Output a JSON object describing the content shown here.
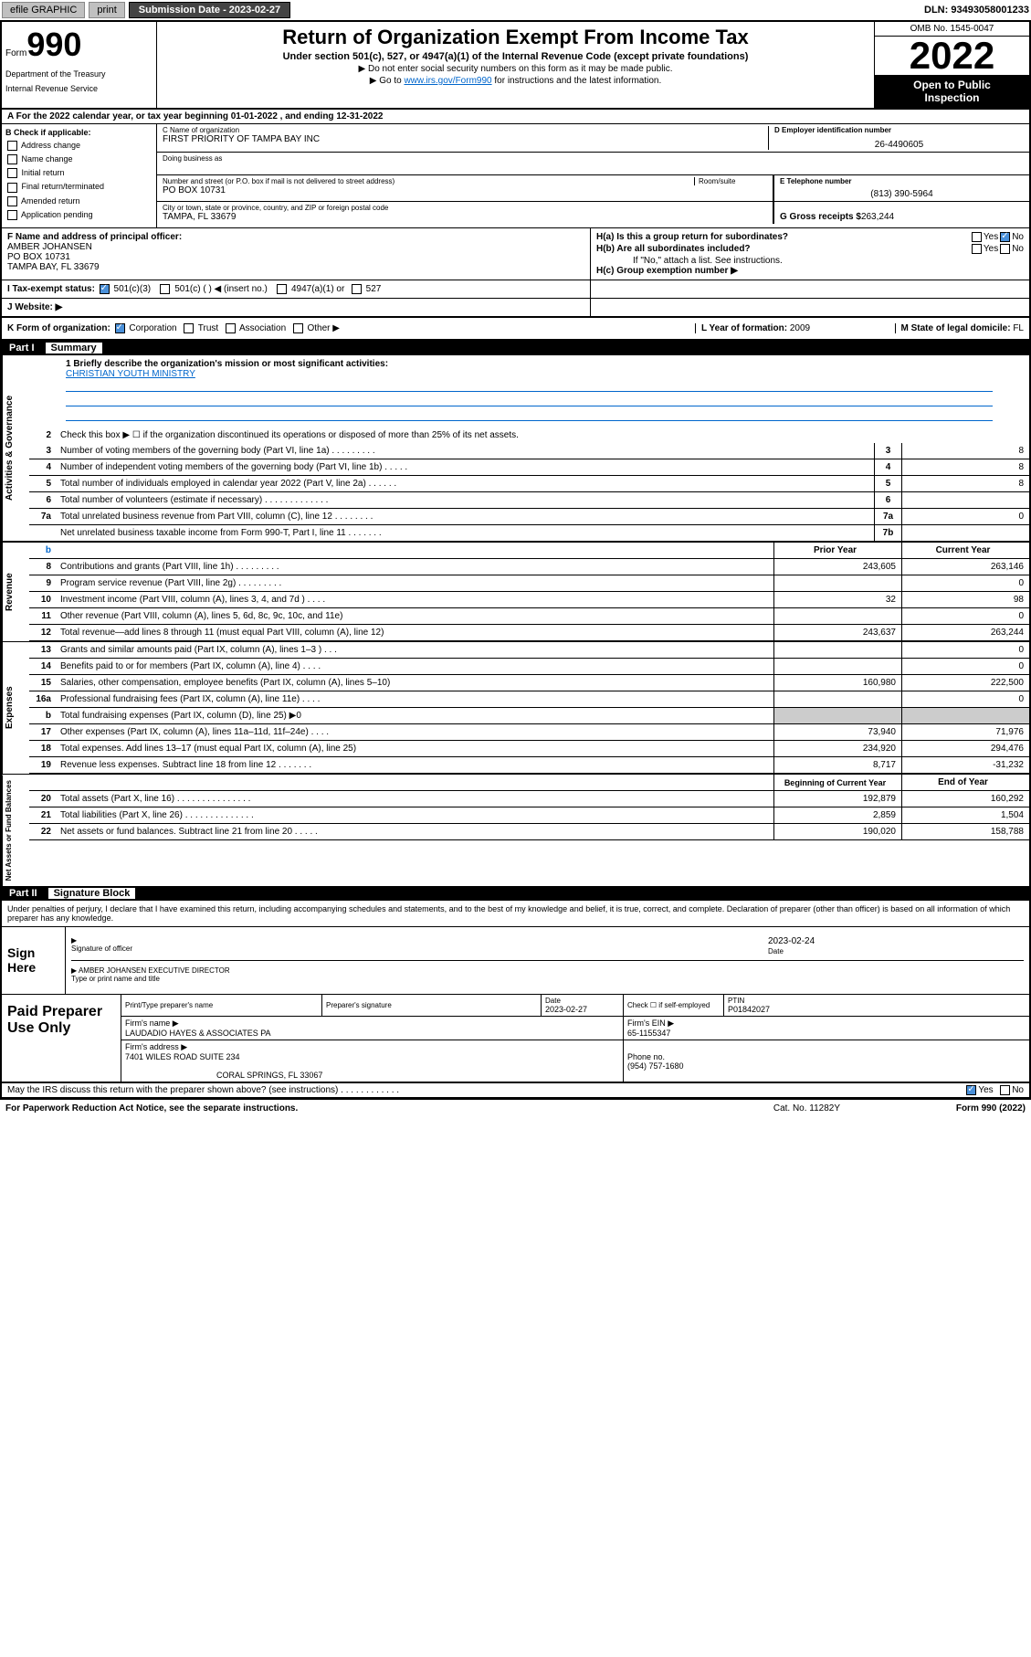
{
  "topbar": {
    "efile": "efile GRAPHIC",
    "print": "print",
    "subdate_lbl": "Submission Date - ",
    "subdate": "2023-02-27",
    "dln_lbl": "DLN: ",
    "dln": "93493058001233"
  },
  "header": {
    "form_word": "Form",
    "form_num": "990",
    "dept": "Department of the Treasury",
    "irs": "Internal Revenue Service",
    "title": "Return of Organization Exempt From Income Tax",
    "subtitle": "Under section 501(c), 527, or 4947(a)(1) of the Internal Revenue Code (except private foundations)",
    "instr1": "▶ Do not enter social security numbers on this form as it may be made public.",
    "instr2_a": "▶ Go to ",
    "instr2_link": "www.irs.gov/Form990",
    "instr2_b": " for instructions and the latest information.",
    "omb": "OMB No. 1545-0047",
    "year": "2022",
    "inspect1": "Open to Public",
    "inspect2": "Inspection"
  },
  "rowA": {
    "text": "A For the 2022 calendar year, or tax year beginning 01-01-2022    , and ending 12-31-2022"
  },
  "colB": {
    "hdr": "B Check if applicable:",
    "opts": [
      "Address change",
      "Name change",
      "Initial return",
      "Final return/terminated",
      "Amended return",
      "Application pending"
    ]
  },
  "nameBox": {
    "c_lbl": "C Name of organization",
    "c_val": "FIRST PRIORITY OF TAMPA BAY INC",
    "dba_lbl": "Doing business as",
    "d_lbl": "D Employer identification number",
    "d_val": "26-4490605",
    "addr_lbl": "Number and street (or P.O. box if mail is not delivered to street address)",
    "room_lbl": "Room/suite",
    "addr_val": "PO BOX 10731",
    "city_lbl": "City or town, state or province, country, and ZIP or foreign postal code",
    "city_val": "TAMPA, FL  33679",
    "e_lbl": "E Telephone number",
    "e_val": "(813) 390-5964",
    "g_lbl": "G Gross receipts $ ",
    "g_val": "263,244"
  },
  "rowF": {
    "f_lbl": "F Name and address of principal officer:",
    "f_name": "AMBER JOHANSEN",
    "f_addr1": "PO BOX 10731",
    "f_addr2": "TAMPA BAY, FL  33679",
    "ha": "H(a)  Is this a group return for subordinates?",
    "hb": "H(b)  Are all subordinates included?",
    "hb_note": "If \"No,\" attach a list. See instructions.",
    "hc": "H(c)  Group exemption number ▶",
    "yes": "Yes",
    "no": "No"
  },
  "rowI": {
    "lbl": "I    Tax-exempt status:",
    "o1": "501(c)(3)",
    "o2": "501(c) (  ) ◀ (insert no.)",
    "o3": "4947(a)(1) or",
    "o4": "527"
  },
  "rowJ": {
    "lbl": "J    Website: ▶"
  },
  "rowK": {
    "lbl": "K Form of organization:",
    "o1": "Corporation",
    "o2": "Trust",
    "o3": "Association",
    "o4": "Other ▶",
    "l_lbl": "L Year of formation: ",
    "l_val": "2009",
    "m_lbl": "M State of legal domicile: ",
    "m_val": "FL"
  },
  "part1": {
    "num": "Part I",
    "ttl": "Summary"
  },
  "mission": {
    "q": "1   Briefly describe the organization's mission or most significant activities:",
    "a": "CHRISTIAN YOUTH MINISTRY"
  },
  "gov": {
    "label": "Activities & Governance",
    "l2": "Check this box ▶ ☐  if the organization discontinued its operations or disposed of more than 25% of its net assets.",
    "lines": [
      {
        "n": "3",
        "d": "Number of voting members of the governing body (Part VI, line 1a)  .  .  .  .  .  .  .  .  .",
        "b": "3",
        "v": "8"
      },
      {
        "n": "4",
        "d": "Number of independent voting members of the governing body (Part VI, line 1b)  .  .  .  .  .",
        "b": "4",
        "v": "8"
      },
      {
        "n": "5",
        "d": "Total number of individuals employed in calendar year 2022 (Part V, line 2a)  .  .  .  .  .  .",
        "b": "5",
        "v": "8"
      },
      {
        "n": "6",
        "d": "Total number of volunteers (estimate if necessary)  .  .  .  .  .  .  .  .  .  .  .  .  .",
        "b": "6",
        "v": ""
      },
      {
        "n": "7a",
        "d": "Total unrelated business revenue from Part VIII, column (C), line 12  .  .  .  .  .  .  .  .",
        "b": "7a",
        "v": "0"
      },
      {
        "n": "",
        "d": "Net unrelated business taxable income from Form 990-T, Part I, line 11  .  .  .  .  .  .  .",
        "b": "7b",
        "v": ""
      }
    ]
  },
  "yrhdr": {
    "prior": "Prior Year",
    "curr": "Current Year"
  },
  "rev": {
    "label": "Revenue",
    "lines": [
      {
        "n": "8",
        "d": "Contributions and grants (Part VIII, line 1h)  .  .  .  .  .  .  .  .  .",
        "p": "243,605",
        "c": "263,146"
      },
      {
        "n": "9",
        "d": "Program service revenue (Part VIII, line 2g)  .  .  .  .  .  .  .  .  .",
        "p": "",
        "c": "0"
      },
      {
        "n": "10",
        "d": "Investment income (Part VIII, column (A), lines 3, 4, and 7d )  .  .  .  .",
        "p": "32",
        "c": "98"
      },
      {
        "n": "11",
        "d": "Other revenue (Part VIII, column (A), lines 5, 6d, 8c, 9c, 10c, and 11e)",
        "p": "",
        "c": "0"
      },
      {
        "n": "12",
        "d": "Total revenue—add lines 8 through 11 (must equal Part VIII, column (A), line 12)",
        "p": "243,637",
        "c": "263,244"
      }
    ]
  },
  "exp": {
    "label": "Expenses",
    "lines": [
      {
        "n": "13",
        "d": "Grants and similar amounts paid (Part IX, column (A), lines 1–3 )  .  .  .",
        "p": "",
        "c": "0"
      },
      {
        "n": "14",
        "d": "Benefits paid to or for members (Part IX, column (A), line 4)  .  .  .  .",
        "p": "",
        "c": "0"
      },
      {
        "n": "15",
        "d": "Salaries, other compensation, employee benefits (Part IX, column (A), lines 5–10)",
        "p": "160,980",
        "c": "222,500"
      },
      {
        "n": "16a",
        "d": "Professional fundraising fees (Part IX, column (A), line 11e)  .  .  .  .",
        "p": "",
        "c": "0"
      },
      {
        "n": "b",
        "d": "Total fundraising expenses (Part IX, column (D), line 25) ▶0",
        "p": "grey",
        "c": "grey"
      },
      {
        "n": "17",
        "d": "Other expenses (Part IX, column (A), lines 11a–11d, 11f–24e)  .  .  .  .",
        "p": "73,940",
        "c": "71,976"
      },
      {
        "n": "18",
        "d": "Total expenses. Add lines 13–17 (must equal Part IX, column (A), line 25)",
        "p": "234,920",
        "c": "294,476"
      },
      {
        "n": "19",
        "d": "Revenue less expenses. Subtract line 18 from line 12  .  .  .  .  .  .  .",
        "p": "8,717",
        "c": "-31,232"
      }
    ]
  },
  "bal": {
    "label": "Net Assets or Fund Balances",
    "hdr_p": "Beginning of Current Year",
    "hdr_c": "End of Year",
    "lines": [
      {
        "n": "20",
        "d": "Total assets (Part X, line 16)  .  .  .  .  .  .  .  .  .  .  .  .  .  .  .",
        "p": "192,879",
        "c": "160,292"
      },
      {
        "n": "21",
        "d": "Total liabilities (Part X, line 26)  .  .  .  .  .  .  .  .  .  .  .  .  .  .",
        "p": "2,859",
        "c": "1,504"
      },
      {
        "n": "22",
        "d": "Net assets or fund balances. Subtract line 21 from line 20  .  .  .  .  .",
        "p": "190,020",
        "c": "158,788"
      }
    ]
  },
  "part2": {
    "num": "Part II",
    "ttl": "Signature Block"
  },
  "sig": {
    "decl": "Under penalties of perjury, I declare that I have examined this return, including accompanying schedules and statements, and to the best of my knowledge and belief, it is true, correct, and complete. Declaration of preparer (other than officer) is based on all information of which preparer has any knowledge.",
    "sign_here": "Sign Here",
    "sig_lbl": "Signature of officer",
    "date_lbl": "Date",
    "date_val": "2023-02-24",
    "name_lbl": "Type or print name and title",
    "name_val": "AMBER JOHANSEN  EXECUTIVE DIRECTOR"
  },
  "prep": {
    "title": "Paid Preparer Use Only",
    "r1": {
      "c1": "Print/Type preparer's name",
      "c2": "Preparer's signature",
      "c3_lbl": "Date",
      "c3_val": "2023-02-27",
      "c4": "Check ☐ if self-employed",
      "c5_lbl": "PTIN",
      "c5_val": "P01842027"
    },
    "r2": {
      "lbl": "Firm's name    ▶ ",
      "val": "LAUDADIO HAYES & ASSOCIATES PA",
      "ein_lbl": "Firm's EIN ▶ ",
      "ein_val": "65-1155347"
    },
    "r3": {
      "lbl": "Firm's address ▶ ",
      "val1": "7401 WILES ROAD SUITE 234",
      "val2": "CORAL SPRINGS, FL  33067",
      "ph_lbl": "Phone no. ",
      "ph_val": "(954) 757-1680"
    }
  },
  "footer": {
    "discuss": "May the IRS discuss this return with the preparer shown above? (see instructions)  .  .  .  .  .  .  .  .  .  .  .  .",
    "yes": "Yes",
    "no": "No",
    "paperwork": "For Paperwork Reduction Act Notice, see the separate instructions.",
    "cat": "Cat. No. 11282Y",
    "form": "Form 990 (2022)"
  }
}
